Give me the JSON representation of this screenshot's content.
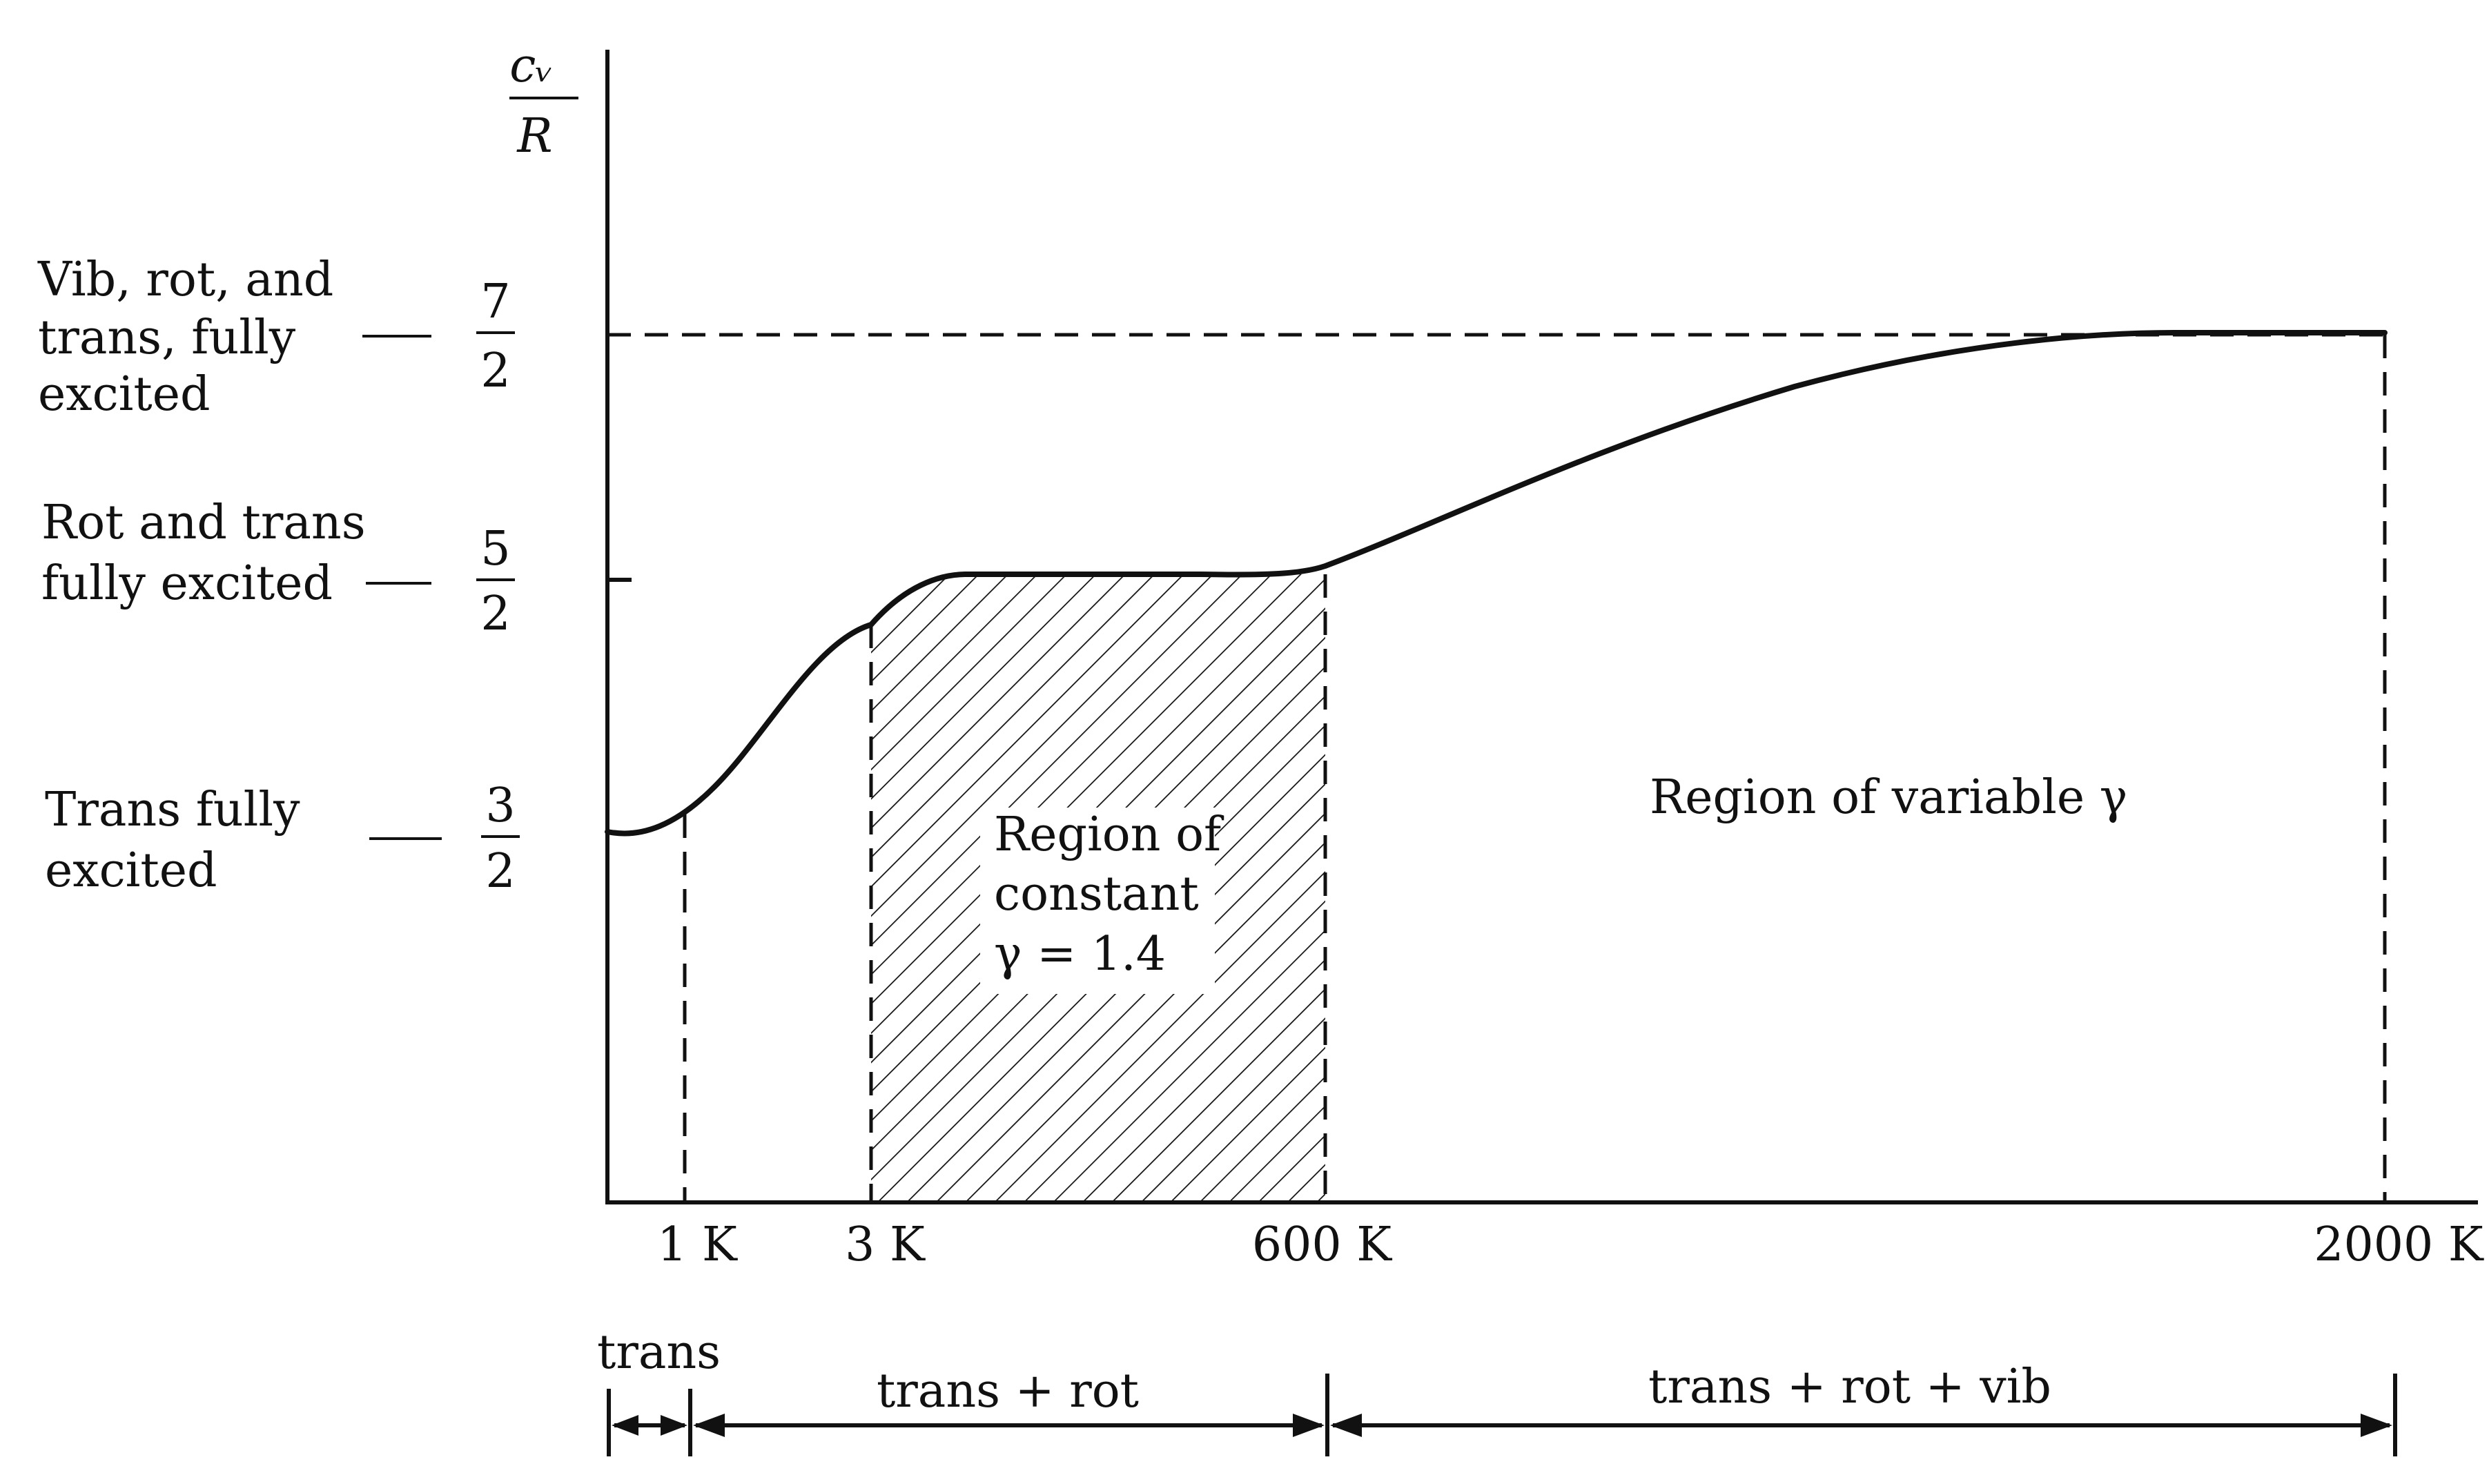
{
  "y_axis": {
    "label_top": "cᵥ",
    "label_bottom": "R",
    "levels": [
      {
        "lines": [
          "Vib, rot, and",
          "trans, fully",
          "excited"
        ],
        "numerator": "7",
        "denominator": "2"
      },
      {
        "lines": [
          "Rot and trans",
          "fully excited"
        ],
        "numerator": "5",
        "denominator": "2"
      },
      {
        "lines": [
          "Trans fully",
          "excited"
        ],
        "numerator": "3",
        "denominator": "2"
      }
    ]
  },
  "x_axis": {
    "ticks": [
      "1 K",
      "3 K",
      "600 K",
      "2000 K"
    ]
  },
  "regions": {
    "constant": [
      "Region of",
      "constant",
      "γ = 1.4"
    ],
    "variable": "Region of variable γ"
  },
  "modes": {
    "trans": "trans",
    "trans_rot": "trans + rot",
    "trans_rot_vib": "trans + rot + vib"
  }
}
